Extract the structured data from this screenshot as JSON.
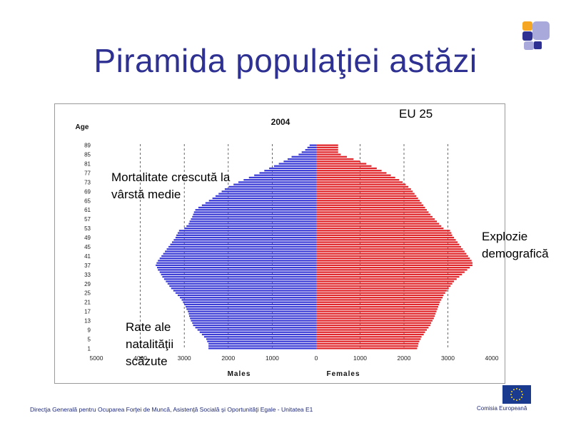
{
  "slide": {
    "title": "Piramida populaţiei astăzi",
    "subtitle": "EU 25",
    "annotations": {
      "left_top": "Mortalitate crescută la vârstă medie",
      "left_bottom": "Rate ale natalităţii scăzute",
      "right": "Explozie demografică"
    },
    "footer": "Directja Generală pentru Ocuparea Forţei de Muncă, Asistenţă Socială şi Oportunităţi Egale - Unitatea E1",
    "eu_label": "Comisia Europeană"
  },
  "colors": {
    "title": "#2e3192",
    "males": "#3b3bd6",
    "females": "#e0262b",
    "logo_orange": "#f5a623",
    "logo_blue": "#2e3192",
    "logo_lilac": "#a9a9dc"
  },
  "chart_data": {
    "type": "bar",
    "subtype": "population-pyramid",
    "title": "2004",
    "ylabel": "Age",
    "xlabel_left": "Males",
    "xlabel_right": "Females",
    "male_axis_ticks": [
      "5000",
      "4000",
      "3000",
      "2000",
      "1000",
      "0"
    ],
    "female_axis_ticks": [
      "1000",
      "2000",
      "3000",
      "4000"
    ],
    "age_ticks": [
      "89",
      "85",
      "81",
      "77",
      "73",
      "69",
      "65",
      "61",
      "57",
      "53",
      "49",
      "45",
      "41",
      "37",
      "33",
      "29",
      "25",
      "21",
      "17",
      "13",
      "9",
      "5",
      "1"
    ],
    "xlim_males": [
      5000,
      0
    ],
    "xlim_females": [
      0,
      4000
    ],
    "grid": "vertical dashed",
    "ages": [
      1,
      2,
      3,
      4,
      5,
      6,
      7,
      8,
      9,
      10,
      11,
      12,
      13,
      14,
      15,
      16,
      17,
      18,
      19,
      20,
      21,
      22,
      23,
      24,
      25,
      26,
      27,
      28,
      29,
      30,
      31,
      32,
      33,
      34,
      35,
      36,
      37,
      38,
      39,
      40,
      41,
      42,
      43,
      44,
      45,
      46,
      47,
      48,
      49,
      50,
      51,
      52,
      53,
      54,
      55,
      56,
      57,
      58,
      59,
      60,
      61,
      62,
      63,
      64,
      65,
      66,
      67,
      68,
      69,
      70,
      71,
      72,
      73,
      74,
      75,
      76,
      77,
      78,
      79,
      80,
      81,
      82,
      83,
      84,
      85,
      86,
      87,
      88,
      89
    ],
    "series": [
      {
        "name": "Males",
        "values": [
          2450,
          2450,
          2450,
          2480,
          2500,
          2550,
          2600,
          2650,
          2700,
          2750,
          2800,
          2820,
          2850,
          2870,
          2890,
          2900,
          2920,
          2950,
          2970,
          3000,
          3030,
          3060,
          3100,
          3150,
          3200,
          3250,
          3300,
          3340,
          3380,
          3420,
          3460,
          3500,
          3530,
          3560,
          3600,
          3620,
          3650,
          3630,
          3600,
          3560,
          3520,
          3480,
          3440,
          3400,
          3360,
          3320,
          3280,
          3240,
          3200,
          3180,
          3150,
          3120,
          3000,
          2950,
          2900,
          2880,
          2850,
          2820,
          2800,
          2780,
          2750,
          2680,
          2600,
          2520,
          2440,
          2360,
          2290,
          2220,
          2150,
          2080,
          1990,
          1880,
          1770,
          1650,
          1530,
          1410,
          1290,
          1180,
          1070,
          960,
          850,
          740,
          650,
          560,
          400,
          330,
          250,
          200,
          150
        ]
      },
      {
        "name": "Females",
        "values": [
          2300,
          2320,
          2330,
          2350,
          2380,
          2400,
          2450,
          2480,
          2520,
          2560,
          2600,
          2620,
          2650,
          2680,
          2700,
          2720,
          2740,
          2760,
          2780,
          2800,
          2820,
          2850,
          2880,
          2900,
          2940,
          2980,
          3020,
          3060,
          3100,
          3140,
          3200,
          3260,
          3320,
          3380,
          3440,
          3500,
          3560,
          3560,
          3540,
          3500,
          3460,
          3420,
          3380,
          3340,
          3300,
          3260,
          3220,
          3180,
          3140,
          3100,
          3080,
          3050,
          2900,
          2850,
          2800,
          2750,
          2700,
          2650,
          2600,
          2560,
          2520,
          2480,
          2440,
          2400,
          2360,
          2320,
          2280,
          2240,
          2200,
          2160,
          2100,
          2040,
          1970,
          1890,
          1800,
          1700,
          1600,
          1490,
          1380,
          1260,
          1140,
          1000,
          850,
          700,
          560,
          500,
          500,
          500,
          500
        ]
      }
    ]
  }
}
